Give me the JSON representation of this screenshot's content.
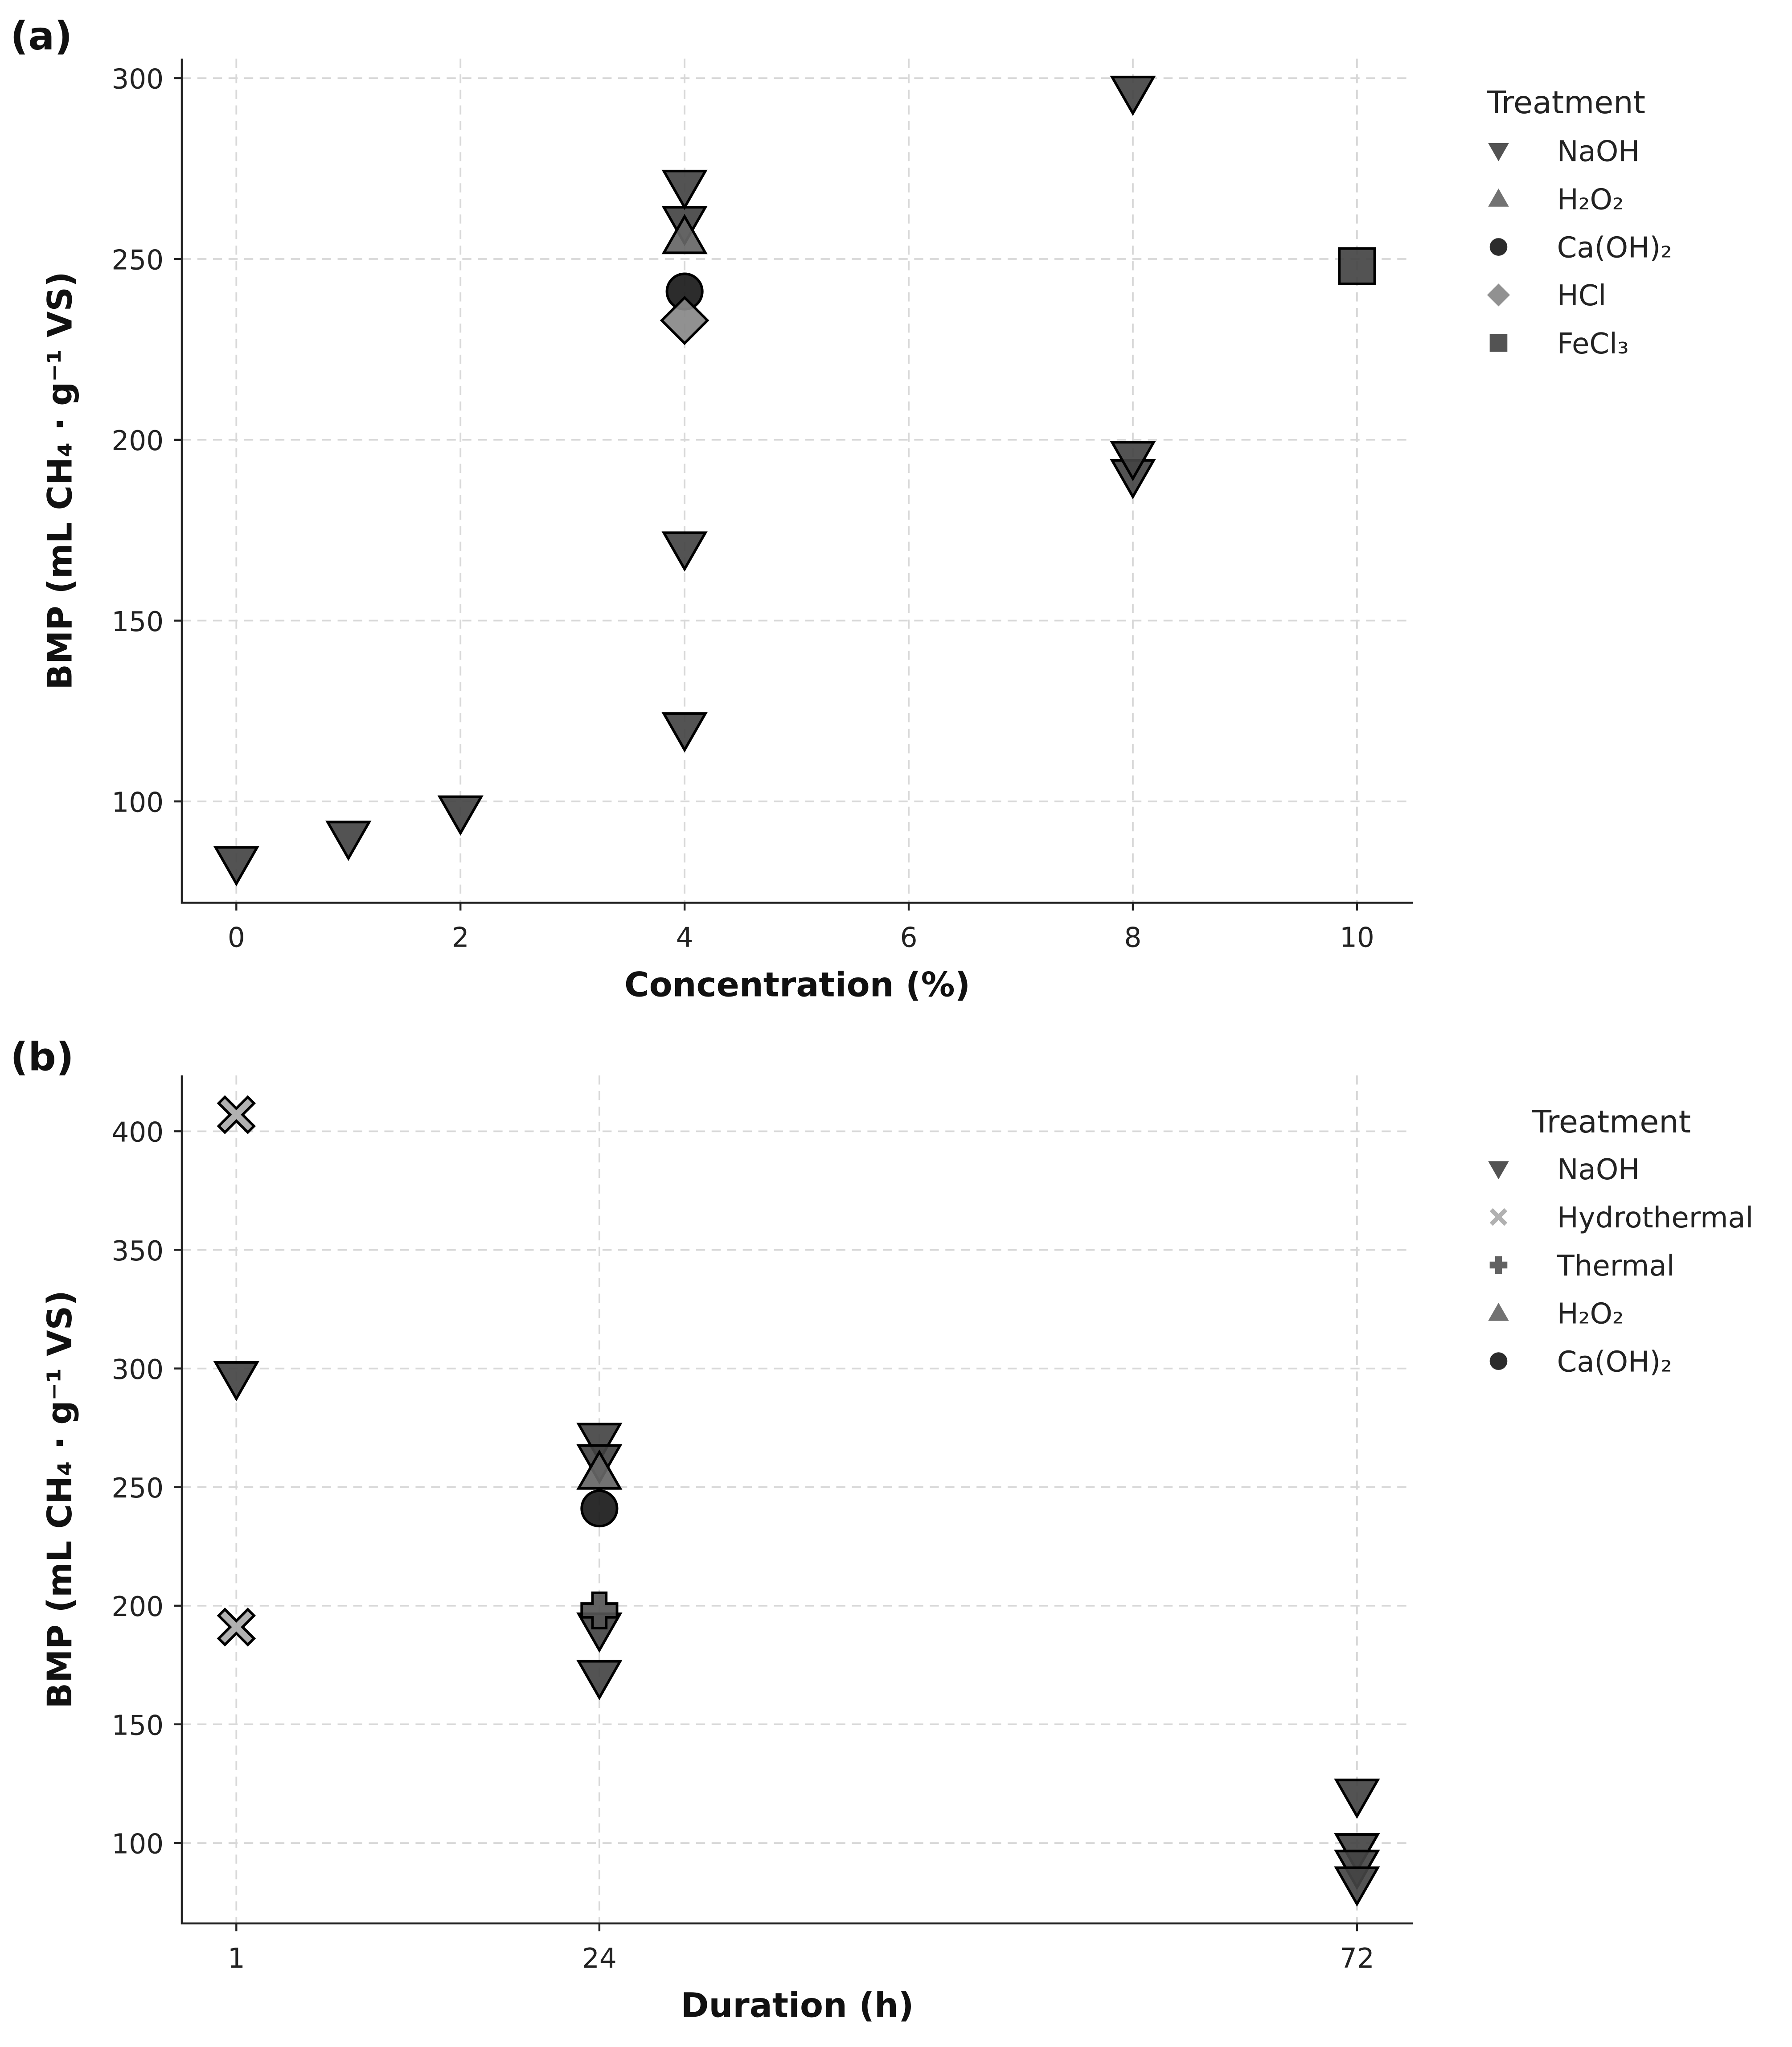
{
  "chart_data": [
    {
      "type": "scatter",
      "panel_label": "(a)",
      "xlabel": "Concentration (%)",
      "ylabel": "BMP (mL CH₄ · g⁻¹ VS)",
      "xlim": [
        -0.5,
        10.5
      ],
      "ylim": [
        72,
        305
      ],
      "xticks": [
        0,
        2,
        4,
        6,
        8,
        10
      ],
      "yticks": [
        100,
        150,
        200,
        250,
        300
      ],
      "grid": true,
      "legend": {
        "title": "Treatment",
        "placement": "outside-right-top"
      },
      "series": [
        {
          "name": "NaOH",
          "marker": "triangle-down",
          "color": "#444444",
          "points": [
            [
              0,
              83
            ],
            [
              1,
              90
            ],
            [
              2,
              97
            ],
            [
              4,
              120
            ],
            [
              4,
              170
            ],
            [
              4,
              260
            ],
            [
              4,
              270
            ],
            [
              8,
              190
            ],
            [
              8,
              195
            ],
            [
              8,
              296
            ]
          ]
        },
        {
          "name": "H₂O₂",
          "marker": "triangle-up",
          "color": "#666666",
          "points": [
            [
              4,
              256
            ]
          ]
        },
        {
          "name": "Ca(OH)₂",
          "marker": "circle",
          "color": "#1a1a1a",
          "points": [
            [
              4,
              241
            ]
          ]
        },
        {
          "name": "HCl",
          "marker": "diamond",
          "color": "#888888",
          "points": [
            [
              4,
              233
            ]
          ]
        },
        {
          "name": "FeCl₃",
          "marker": "square",
          "color": "#444444",
          "points": [
            [
              10,
              248
            ]
          ]
        }
      ]
    },
    {
      "type": "scatter",
      "panel_label": "(b)",
      "xlabel": "Duration (h)",
      "ylabel": "BMP (mL CH₄ · g⁻¹ VS)",
      "xlim": [
        -2.5,
        75.5
      ],
      "ylim": [
        66,
        424
      ],
      "xticks": [
        1,
        24,
        72
      ],
      "yticks": [
        100,
        150,
        200,
        250,
        300,
        350,
        400
      ],
      "grid": true,
      "legend": {
        "title": "Treatment",
        "placement": "outside-right-top"
      },
      "series": [
        {
          "name": "NaOH",
          "marker": "triangle-down",
          "color": "#444444",
          "points": [
            [
              1,
              296
            ],
            [
              24,
              270
            ],
            [
              24,
              261
            ],
            [
              24,
              190
            ],
            [
              24,
              170
            ],
            [
              72,
              120
            ],
            [
              72,
              97
            ],
            [
              72,
              90
            ],
            [
              72,
              83
            ]
          ]
        },
        {
          "name": "Hydrothermal",
          "marker": "x-filled",
          "color": "#aaaaaa",
          "points": [
            [
              1,
              407
            ],
            [
              1,
              191
            ]
          ]
        },
        {
          "name": "Thermal",
          "marker": "plus-filled",
          "color": "#555555",
          "points": [
            [
              24,
              198
            ]
          ]
        },
        {
          "name": "H₂O₂",
          "marker": "triangle-up",
          "color": "#666666",
          "points": [
            [
              24,
              256
            ]
          ]
        },
        {
          "name": "Ca(OH)₂",
          "marker": "circle",
          "color": "#1a1a1a",
          "points": [
            [
              24,
              241
            ]
          ]
        }
      ]
    }
  ]
}
